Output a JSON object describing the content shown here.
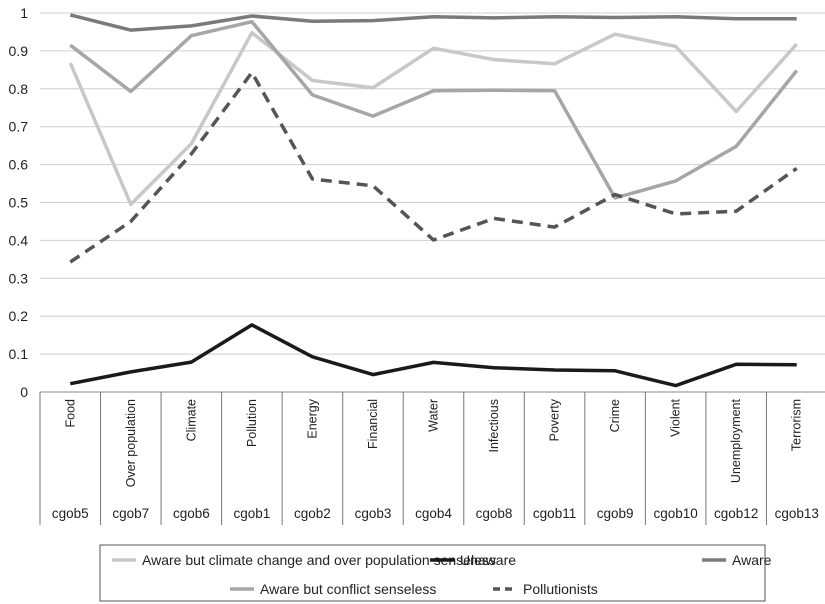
{
  "chart_data": {
    "type": "line",
    "categories": [
      "Food",
      "Over population",
      "Climate",
      "Pollution",
      "Energy",
      "Financial",
      "Water",
      "Infectious",
      "Poverty",
      "Crime",
      "Violent",
      "Unemployment",
      "Terrorism"
    ],
    "codes": [
      "cgob5",
      "cgob7",
      "cgob6",
      "cgob1",
      "cgob2",
      "cgob3",
      "cgob4",
      "cgob8",
      "cgob11",
      "cgob9",
      "cgob10",
      "cgob12",
      "cgob13"
    ],
    "ylim": [
      0,
      1
    ],
    "yticks": [
      "0",
      "0.1",
      "0.2",
      "0.3",
      "0.4",
      "0.5",
      "0.6",
      "0.7",
      "0.8",
      "0.9",
      "1"
    ],
    "grid": true,
    "legend_position": "bottom",
    "series": [
      {
        "name": "Aware but climate change and over population senseless",
        "color": "#c8c8c8",
        "dash": "solid",
        "values": [
          0.868,
          0.495,
          0.655,
          0.948,
          0.822,
          0.803,
          0.907,
          0.877,
          0.866,
          0.944,
          0.912,
          0.74,
          0.918
        ]
      },
      {
        "name": "Unaware",
        "color": "#1a1a1a",
        "dash": "solid",
        "values": [
          0.022,
          0.053,
          0.079,
          0.177,
          0.093,
          0.046,
          0.078,
          0.064,
          0.058,
          0.056,
          0.017,
          0.073,
          0.072
        ]
      },
      {
        "name": "Aware",
        "color": "#7a7a7a",
        "dash": "solid",
        "values": [
          0.995,
          0.955,
          0.966,
          0.992,
          0.978,
          0.98,
          0.99,
          0.987,
          0.99,
          0.988,
          0.99,
          0.985,
          0.985
        ]
      },
      {
        "name": "Aware but conflict senseless",
        "color": "#a6a6a6",
        "dash": "solid",
        "values": [
          0.915,
          0.793,
          0.94,
          0.977,
          0.784,
          0.728,
          0.795,
          0.796,
          0.795,
          0.512,
          0.557,
          0.648,
          0.848
        ]
      },
      {
        "name": "Pollutionists",
        "color": "#555555",
        "dash": "dashed",
        "values": [
          0.343,
          0.45,
          0.628,
          0.843,
          0.562,
          0.544,
          0.401,
          0.458,
          0.435,
          0.521,
          0.47,
          0.477,
          0.59
        ]
      }
    ],
    "legend_rows": [
      [
        0,
        1,
        2
      ],
      [
        3,
        4
      ]
    ]
  }
}
